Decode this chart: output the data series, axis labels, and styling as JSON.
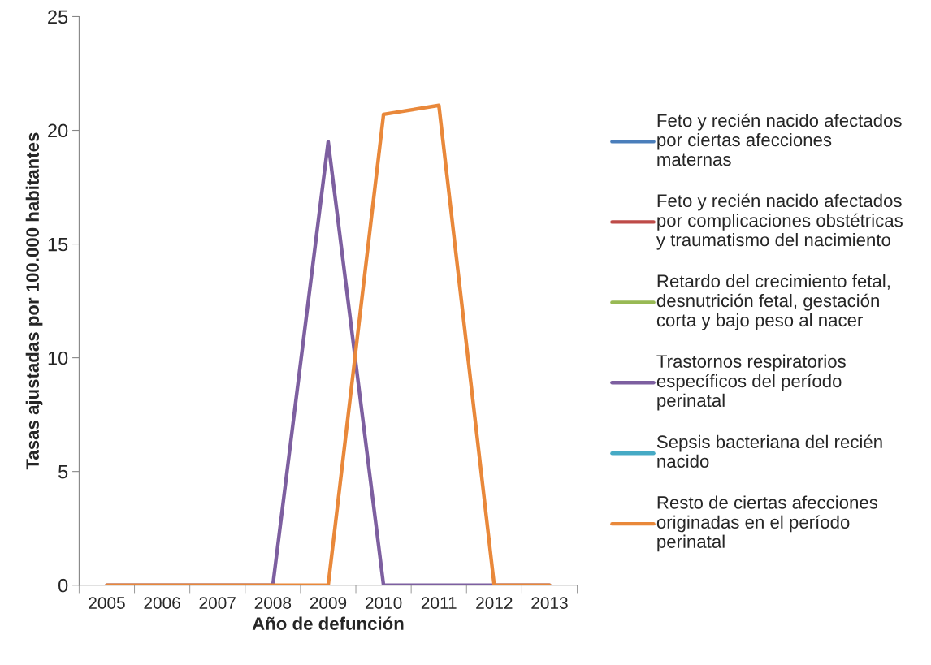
{
  "chart_data": {
    "type": "line",
    "xlabel": "Año de defunción",
    "ylabel": "Tasas ajustadas por 100.000 habitantes",
    "categories": [
      "2005",
      "2006",
      "2007",
      "2008",
      "2009",
      "2010",
      "2011",
      "2012",
      "2013"
    ],
    "series": [
      {
        "name": "Feto y recién nacido afectados\npor ciertas afecciones\nmaternas",
        "color": "#4a7ebb",
        "values": [
          null,
          null,
          null,
          null,
          null,
          null,
          null,
          null,
          null
        ]
      },
      {
        "name": "Feto y recién nacido afectados\npor complicaciones obstétricas\ny traumatismo del nacimiento",
        "color": "#be4b48",
        "values": [
          null,
          null,
          null,
          null,
          null,
          null,
          null,
          null,
          null
        ]
      },
      {
        "name": "Retardo del crecimiento fetal,\ndesnutrición fetal, gestación\ncorta y bajo peso al nacer",
        "color": "#98b954",
        "values": [
          null,
          null,
          null,
          null,
          null,
          null,
          null,
          null,
          null
        ]
      },
      {
        "name": "Trastornos respiratorios\nespecíficos del período\nperinatal",
        "color": "#7d5fa0",
        "values": [
          0,
          0,
          0,
          0,
          19.5,
          0,
          0,
          0,
          0
        ]
      },
      {
        "name": "Sepsis bacteriana del recién\nnacido",
        "color": "#46aac5",
        "values": [
          null,
          null,
          null,
          null,
          null,
          null,
          null,
          null,
          null
        ]
      },
      {
        "name": "Resto de ciertas afecciones\noriginadas en el período\nperinatal",
        "color": "#e9883a",
        "values": [
          0,
          0,
          0,
          0,
          0,
          20.7,
          21.1,
          0,
          0
        ]
      }
    ],
    "ylim": [
      0,
      25
    ],
    "yticks": [
      0,
      5,
      10,
      15,
      20,
      25
    ],
    "grid": false,
    "legend": "right",
    "marker": "none",
    "line_style": "solid"
  }
}
